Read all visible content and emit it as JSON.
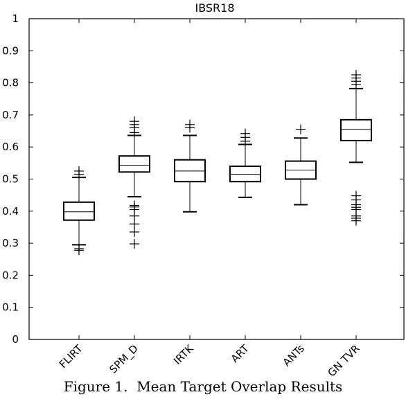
{
  "caption": "Figure 1.  Mean Target Overlap Results",
  "chart_data": {
    "type": "box",
    "title": "IBSR18",
    "xlabel": "",
    "ylabel": "",
    "ylim": [
      0,
      1
    ],
    "yticks": [
      "0",
      "0.1",
      "0.2",
      "0.3",
      "0.4",
      "0.5",
      "0.6",
      "0.7",
      "0.8",
      "0.9",
      "1"
    ],
    "grid": false,
    "categories": [
      "FLIRT",
      "SPM_D",
      "IRTK",
      "ART",
      "ANTs",
      "GN TVR"
    ],
    "boxes": [
      {
        "whisker_low": 0.295,
        "q1": 0.372,
        "median": 0.398,
        "q3": 0.428,
        "whisker_high": 0.505,
        "outliers": [
          0.278,
          0.283,
          0.515,
          0.525
        ]
      },
      {
        "whisker_low": 0.445,
        "q1": 0.522,
        "median": 0.543,
        "q3": 0.572,
        "whisker_high": 0.636,
        "outliers": [
          0.298,
          0.335,
          0.36,
          0.385,
          0.405,
          0.413,
          0.418,
          0.645,
          0.66,
          0.67,
          0.68
        ]
      },
      {
        "whisker_low": 0.398,
        "q1": 0.492,
        "median": 0.525,
        "q3": 0.56,
        "whisker_high": 0.636,
        "outliers": [
          0.66,
          0.67
        ]
      },
      {
        "whisker_low": 0.443,
        "q1": 0.492,
        "median": 0.515,
        "q3": 0.54,
        "whisker_high": 0.608,
        "outliers": [
          0.618,
          0.63,
          0.642
        ]
      },
      {
        "whisker_low": 0.42,
        "q1": 0.5,
        "median": 0.528,
        "q3": 0.556,
        "whisker_high": 0.628,
        "outliers": [
          0.655
        ]
      },
      {
        "whisker_low": 0.552,
        "q1": 0.62,
        "median": 0.655,
        "q3": 0.685,
        "whisker_high": 0.782,
        "outliers": [
          0.37,
          0.378,
          0.385,
          0.405,
          0.412,
          0.42,
          0.435,
          0.448,
          0.795,
          0.805,
          0.815,
          0.825
        ]
      }
    ]
  }
}
